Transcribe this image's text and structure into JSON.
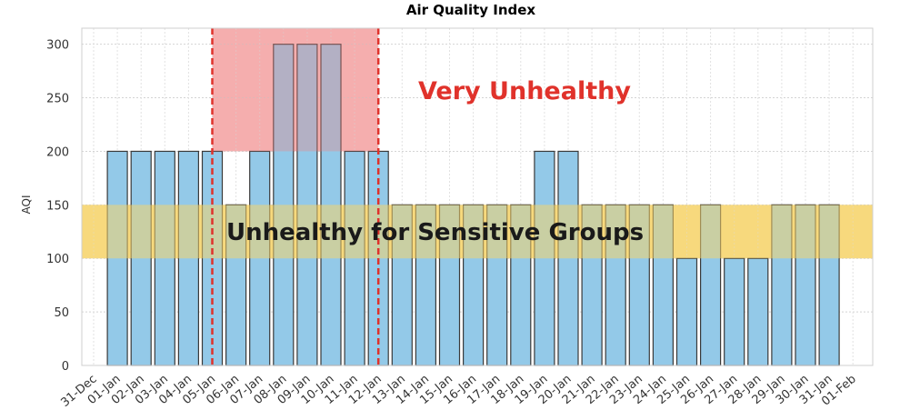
{
  "chart_data": {
    "type": "bar",
    "title": "Air Quality Index",
    "xlabel": "",
    "ylabel": "AQI",
    "ylim": [
      0,
      315
    ],
    "yticks": [
      0,
      50,
      100,
      150,
      200,
      250,
      300
    ],
    "grid": true,
    "x_ticks": [
      "31-Dec",
      "01-Jan",
      "02-Jan",
      "03-Jan",
      "04-Jan",
      "05-Jan",
      "06-Jan",
      "07-Jan",
      "08-Jan",
      "09-Jan",
      "10-Jan",
      "11-Jan",
      "12-Jan",
      "13-Jan",
      "14-Jan",
      "15-Jan",
      "16-Jan",
      "17-Jan",
      "18-Jan",
      "19-Jan",
      "20-Jan",
      "21-Jan",
      "22-Jan",
      "23-Jan",
      "24-Jan",
      "25-Jan",
      "26-Jan",
      "27-Jan",
      "28-Jan",
      "29-Jan",
      "30-Jan",
      "31-Jan",
      "01-Feb"
    ],
    "categories": [
      "01-Jan",
      "02-Jan",
      "03-Jan",
      "04-Jan",
      "05-Jan",
      "06-Jan",
      "07-Jan",
      "08-Jan",
      "09-Jan",
      "10-Jan",
      "11-Jan",
      "12-Jan",
      "13-Jan",
      "14-Jan",
      "15-Jan",
      "16-Jan",
      "17-Jan",
      "18-Jan",
      "19-Jan",
      "20-Jan",
      "21-Jan",
      "22-Jan",
      "23-Jan",
      "24-Jan",
      "25-Jan",
      "26-Jan",
      "27-Jan",
      "28-Jan",
      "29-Jan",
      "30-Jan",
      "31-Jan"
    ],
    "values": [
      200,
      200,
      200,
      200,
      200,
      150,
      200,
      300,
      300,
      300,
      200,
      200,
      150,
      150,
      150,
      150,
      150,
      150,
      200,
      200,
      150,
      150,
      150,
      150,
      100,
      150,
      100,
      100,
      150,
      150,
      150
    ],
    "bands": [
      {
        "name": "Unhealthy for Sensitive Groups",
        "y_from": 100,
        "y_to": 150,
        "color": "#f5d36a"
      },
      {
        "name": "Very Unhealthy",
        "y_from": 200,
        "y_to": 315,
        "x_from": "05-Jan",
        "x_to": "12-Jan",
        "color": "#f08080"
      }
    ],
    "vlines": [
      "05-Jan",
      "12-Jan"
    ],
    "colors": {
      "bar": "#93c9e8",
      "bar_edge": "#3a3a3a",
      "vline": "#e0322b",
      "very_unhealthy_text": "#e0322b",
      "sensitive_text": "#1a1a1a"
    }
  }
}
